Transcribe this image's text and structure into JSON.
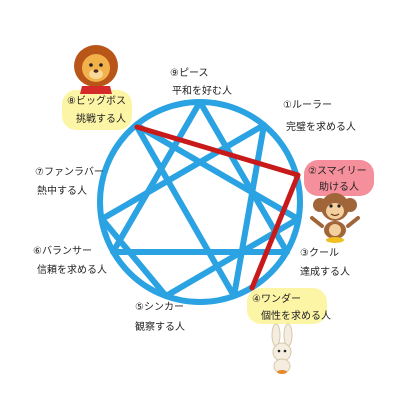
{
  "types": [
    {
      "number": 1,
      "name": "①ルーラー",
      "desc": "完璧を求める人"
    },
    {
      "number": 2,
      "name": "②スマイリー",
      "desc": "助ける人"
    },
    {
      "number": 3,
      "name": "③クール",
      "desc": "達成する人"
    },
    {
      "number": 4,
      "name": "④ワンダー",
      "desc": "個性を求める人"
    },
    {
      "number": 5,
      "name": "⑤シンカー",
      "desc": "観察する人"
    },
    {
      "number": 6,
      "name": "⑥バランサー",
      "desc": "信頼を求める人"
    },
    {
      "number": 7,
      "name": "⑦ファンラバー",
      "desc": "熱中する人"
    },
    {
      "number": 8,
      "name": "⑧ビッグボス",
      "desc": "挑戦する人"
    },
    {
      "number": 9,
      "name": "⑨ピース",
      "desc": "平和を好む人"
    }
  ],
  "highlighted_path": [
    8,
    2,
    4
  ],
  "colors": {
    "circle": "#2ba3e2",
    "lines": "#2ba3e2",
    "path": "#c81a1a",
    "highlight_yellow": "#fdf5a6",
    "highlight_pink": "#f58f9b"
  },
  "characters": [
    {
      "type": 8,
      "icon": "lion-character"
    },
    {
      "type": 2,
      "icon": "monkey-character"
    },
    {
      "type": 4,
      "icon": "rabbit-character"
    }
  ]
}
